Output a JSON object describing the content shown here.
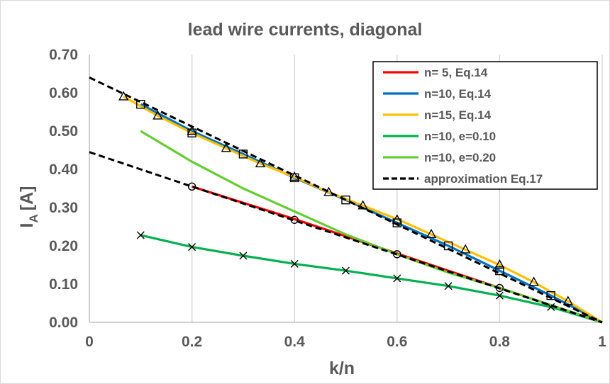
{
  "chart_data": {
    "type": "line",
    "title": "lead wire currents, diagonal",
    "xlabel": "k/n",
    "ylabel": {
      "main": "I",
      "sub": "A",
      "unit": "[A]"
    },
    "xlim": [
      0,
      1
    ],
    "ylim": [
      0,
      0.7
    ],
    "xticks": [
      {
        "value": 0,
        "label": "0"
      },
      {
        "value": 0.2,
        "label": "0.2"
      },
      {
        "value": 0.4,
        "label": "0.4"
      },
      {
        "value": 0.6,
        "label": "0.6"
      },
      {
        "value": 0.8,
        "label": "0.8"
      },
      {
        "value": 1,
        "label": "1"
      }
    ],
    "yticks": [
      {
        "value": 0,
        "label": "0.00"
      },
      {
        "value": 0.1,
        "label": "0.10"
      },
      {
        "value": 0.2,
        "label": "0.20"
      },
      {
        "value": 0.3,
        "label": "0.30"
      },
      {
        "value": 0.4,
        "label": "0.40"
      },
      {
        "value": 0.5,
        "label": "0.50"
      },
      {
        "value": 0.6,
        "label": "0.60"
      },
      {
        "value": 0.7,
        "label": "0.70"
      }
    ],
    "grid": {
      "vertical": true,
      "horizontal": false
    },
    "legend_position": "top-right",
    "series": [
      {
        "name": "n= 5,  Eq.14",
        "color": "#ff0000",
        "dash": "solid",
        "in_legend": true,
        "x": [
          0.2,
          0.4,
          0.6,
          0.8,
          1.0
        ],
        "y": [
          0.355,
          0.27,
          0.18,
          0.09,
          0.0
        ]
      },
      {
        "name": "n=10, Eq.14",
        "color": "#0070c0",
        "dash": "solid",
        "in_legend": true,
        "x": [
          0.1,
          0.2,
          0.3,
          0.4,
          0.5,
          0.6,
          0.7,
          0.8,
          0.9,
          1.0
        ],
        "y": [
          0.57,
          0.5,
          0.44,
          0.378,
          0.32,
          0.26,
          0.2,
          0.135,
          0.07,
          0.0
        ]
      },
      {
        "name": "n=15, Eq.14",
        "color": "#ffc000",
        "dash": "solid",
        "in_legend": true,
        "x": [
          0.0667,
          0.1333,
          0.2,
          0.2667,
          0.3333,
          0.4,
          0.4667,
          0.5333,
          0.6,
          0.6667,
          0.7333,
          0.8,
          0.8667,
          0.9333,
          1.0
        ],
        "y": [
          0.59,
          0.54,
          0.495,
          0.455,
          0.415,
          0.38,
          0.34,
          0.305,
          0.27,
          0.23,
          0.19,
          0.15,
          0.105,
          0.055,
          0.0
        ]
      },
      {
        "name": "n=10, e=0.10",
        "color": "#00b050",
        "dash": "solid",
        "in_legend": true,
        "x": [
          0.1,
          0.2,
          0.3,
          0.4,
          0.5,
          0.6,
          0.7,
          0.8,
          0.9,
          1.0
        ],
        "y": [
          0.228,
          0.197,
          0.174,
          0.153,
          0.135,
          0.115,
          0.095,
          0.07,
          0.04,
          0.0
        ]
      },
      {
        "name": "n=10, e=0.20",
        "color": "#66cc33",
        "dash": "solid",
        "in_legend": true,
        "x": [
          0.1,
          0.2,
          0.3,
          0.4,
          0.5,
          0.6,
          0.7,
          0.8,
          0.9,
          1.0
        ],
        "y": [
          0.5,
          0.42,
          0.35,
          0.29,
          0.23,
          0.178,
          0.13,
          0.09,
          0.045,
          0.0
        ]
      },
      {
        "name": "approximation Eq.17",
        "color": "#000000",
        "dash": "dashed",
        "in_legend": true,
        "x": [
          0,
          1
        ],
        "y": [
          0.64,
          0
        ]
      },
      {
        "name": "approximation Eq.17",
        "color": "#000000",
        "dash": "dashed",
        "in_legend": false,
        "x": [
          0,
          0.2,
          1
        ],
        "y": [
          0.445,
          0.355,
          0
        ]
      }
    ],
    "markers": [
      {
        "symbol": "triangle",
        "x": [
          0.0667,
          0.1333,
          0.2,
          0.2667,
          0.3333,
          0.4,
          0.4667,
          0.5333,
          0.6,
          0.6667,
          0.7333,
          0.8,
          0.8667,
          0.9333
        ],
        "y": [
          0.59,
          0.54,
          0.5,
          0.455,
          0.415,
          0.38,
          0.34,
          0.305,
          0.268,
          0.23,
          0.19,
          0.15,
          0.105,
          0.055
        ]
      },
      {
        "symbol": "square",
        "x": [
          0.1,
          0.2,
          0.3,
          0.4,
          0.5,
          0.6,
          0.7,
          0.8,
          0.9
        ],
        "y": [
          0.57,
          0.495,
          0.44,
          0.378,
          0.32,
          0.26,
          0.2,
          0.135,
          0.07
        ]
      },
      {
        "symbol": "circle",
        "x": [
          0.2,
          0.4,
          0.6,
          0.8
        ],
        "y": [
          0.355,
          0.268,
          0.178,
          0.09
        ]
      },
      {
        "symbol": "cross",
        "x": [
          0.1,
          0.2,
          0.3,
          0.4,
          0.5,
          0.6,
          0.7,
          0.8,
          0.9
        ],
        "y": [
          0.228,
          0.197,
          0.174,
          0.153,
          0.135,
          0.115,
          0.095,
          0.07,
          0.04
        ]
      }
    ]
  }
}
